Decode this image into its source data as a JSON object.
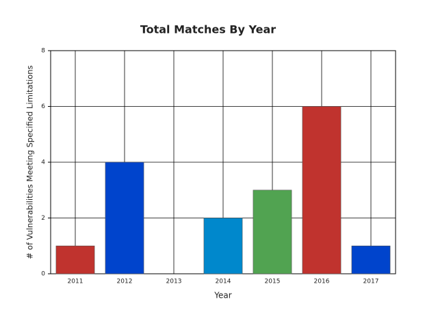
{
  "chart_data": {
    "type": "bar",
    "title": "Total Matches By Year",
    "x_label": "Year",
    "y_label": "# of Vulnerabilities Meeting Specified Limitations",
    "categories": [
      "2011",
      "2012",
      "2013",
      "2014",
      "2015",
      "2016",
      "2017"
    ],
    "values": [
      1,
      4,
      0,
      2,
      3,
      6,
      1
    ],
    "colors": [
      "#c0332e",
      "#0044cc",
      "#0044cc",
      "#0088cc",
      "#51a351",
      "#c0332e",
      "#0044cc"
    ],
    "ylim": [
      0,
      8
    ],
    "yticks": [
      0,
      2,
      4,
      6,
      8
    ],
    "grid": true
  }
}
